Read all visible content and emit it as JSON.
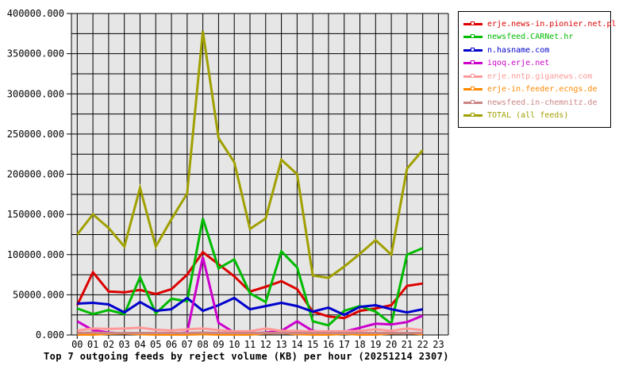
{
  "title": "Top 7 outgoing feeds by reject volume (KB) per hour (20251214 2307)",
  "chart_data": {
    "type": "line",
    "title": "Top 7 outgoing feeds by reject volume (KB) per hour (20251214 2307)",
    "xlabel": "",
    "ylabel": "",
    "x_labels": [
      "00",
      "01",
      "02",
      "03",
      "04",
      "05",
      "06",
      "07",
      "08",
      "09",
      "10",
      "11",
      "12",
      "13",
      "14",
      "15",
      "16",
      "17",
      "18",
      "19",
      "20",
      "21",
      "22",
      "23"
    ],
    "ylim": [
      0,
      400000
    ],
    "ytick_labels": [
      "0.000",
      "50000.000",
      "100000.000",
      "150000.000",
      "200000.000",
      "250000.000",
      "300000.000",
      "350000.000",
      "400000.000"
    ],
    "ytick_step": 50000,
    "minor_grid_step": 25000,
    "grid": true,
    "plot_bg": "#e6e6e6",
    "grid_color": "#000000",
    "legend_position": "top-right-outside",
    "series": [
      {
        "name": "erje.news-in.pionier.net.pl",
        "color": "#dd0000",
        "values": [
          37000,
          78000,
          54000,
          53000,
          56000,
          51000,
          57000,
          75000,
          103000,
          88000,
          73000,
          54000,
          60000,
          67000,
          57000,
          29000,
          23000,
          21000,
          30000,
          33000,
          37000,
          61000,
          64000
        ]
      },
      {
        "name": "newsfeed.CARNet.hr",
        "color": "#00bb00",
        "values": [
          33000,
          26000,
          31000,
          26000,
          72000,
          27000,
          45000,
          42000,
          145000,
          83000,
          94000,
          52000,
          41000,
          104000,
          84000,
          17000,
          12000,
          30000,
          36000,
          29000,
          14000,
          100000,
          108000
        ]
      },
      {
        "name": "n.hasname.com",
        "color": "#0000cc",
        "values": [
          39000,
          40000,
          38000,
          28000,
          41000,
          30000,
          32000,
          46000,
          30000,
          37000,
          46000,
          32000,
          36000,
          40000,
          36000,
          29000,
          34000,
          25000,
          35000,
          37000,
          32000,
          28000,
          32000
        ]
      },
      {
        "name": "iqoq.erje.net",
        "color": "#cc00cc",
        "values": [
          17000,
          6000,
          3000,
          2000,
          2000,
          2000,
          2000,
          3000,
          97000,
          15000,
          3000,
          2000,
          3000,
          5000,
          17000,
          5000,
          3000,
          4000,
          9000,
          14000,
          13000,
          16000,
          24000
        ]
      },
      {
        "name": "erje.nntp.giganews.com",
        "color": "#ff9999",
        "values": [
          5500,
          8000,
          7500,
          8000,
          9000,
          6500,
          5500,
          7000,
          8000,
          6000,
          4500,
          4500,
          8000,
          5000,
          5000,
          4500,
          4500,
          4500,
          5000,
          7000,
          5000,
          8000,
          6000
        ]
      },
      {
        "name": "erje-in.feeder.ecngs.de",
        "color": "#ff8800",
        "values": [
          500,
          500,
          1500,
          2000,
          1000,
          500,
          500,
          500,
          1000,
          500,
          500,
          500,
          2000,
          2500,
          1000,
          500,
          500,
          1500,
          500,
          500,
          2000,
          2500,
          1000
        ]
      },
      {
        "name": "newsfeed.in-chemnitz.de",
        "color": "#cc8585",
        "values": [
          2500,
          3000,
          2500,
          2500,
          2500,
          2500,
          2500,
          2500,
          3000,
          2500,
          2500,
          2500,
          2500,
          2500,
          2500,
          2500,
          2500,
          2500,
          2500,
          2500,
          2500,
          2500,
          2500
        ]
      },
      {
        "name": "TOTAL (all feeds)",
        "color": "#a0a000",
        "values": [
          125000,
          150000,
          133000,
          110000,
          183000,
          110000,
          144000,
          176000,
          378000,
          245000,
          215000,
          132000,
          145000,
          218000,
          200000,
          74000,
          71000,
          85000,
          101000,
          118000,
          100000,
          207000,
          230000
        ]
      }
    ]
  }
}
